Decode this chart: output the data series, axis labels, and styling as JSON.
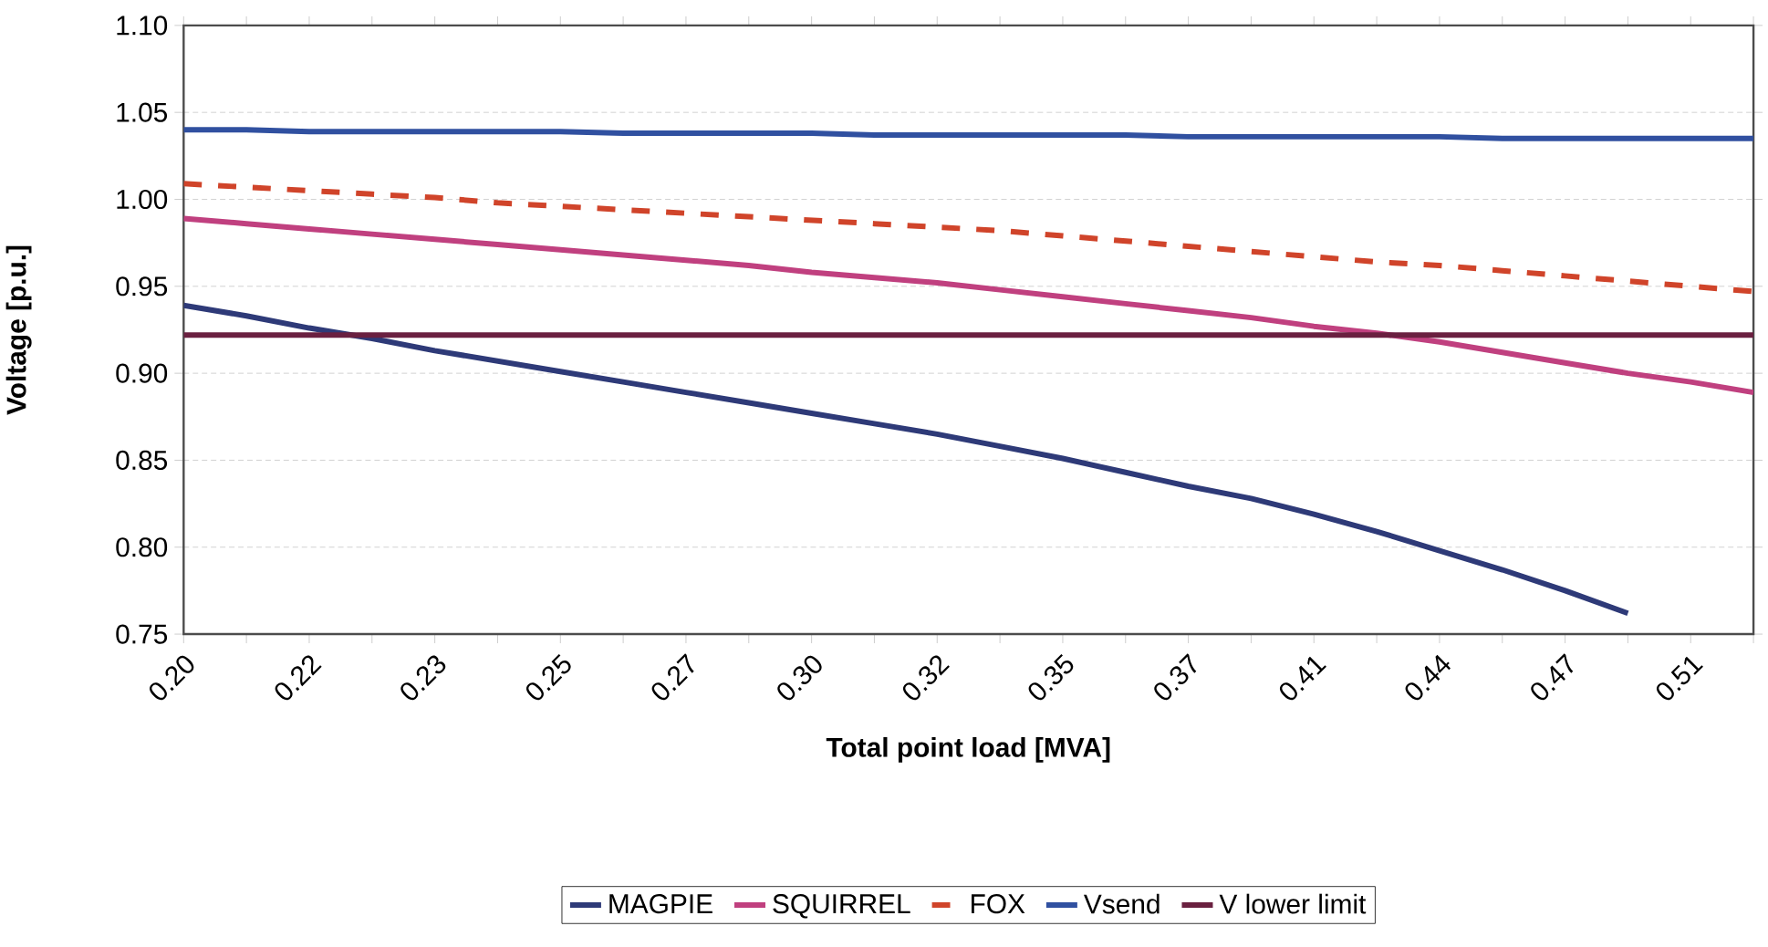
{
  "chart_data": {
    "type": "line",
    "xlabel": "Total point load [MVA]",
    "ylabel": "Voltage [p.u.]",
    "categories": [
      "0.20",
      null,
      "0.22",
      null,
      "0.23",
      null,
      "0.25",
      null,
      "0.27",
      null,
      "0.30",
      null,
      "0.32",
      null,
      "0.35",
      null,
      "0.37",
      null,
      "0.41",
      null,
      "0.44",
      null,
      "0.47",
      null,
      "0.51",
      null
    ],
    "series": [
      {
        "name": "MAGPIE",
        "color": "#2e3a78",
        "line_style": "solid",
        "values": [
          0.939,
          0.933,
          0.926,
          0.92,
          0.913,
          0.907,
          0.901,
          0.895,
          0.889,
          0.883,
          0.877,
          0.871,
          0.865,
          0.858,
          0.851,
          0.843,
          0.835,
          0.828,
          0.819,
          0.809,
          0.798,
          0.787,
          0.775,
          0.762,
          null,
          null
        ]
      },
      {
        "name": "SQUIRREL",
        "color": "#c0407f",
        "line_style": "solid",
        "values": [
          0.989,
          0.986,
          0.983,
          0.98,
          0.977,
          0.974,
          0.971,
          0.968,
          0.965,
          0.962,
          0.958,
          0.955,
          0.952,
          0.948,
          0.944,
          0.94,
          0.936,
          0.932,
          0.927,
          0.923,
          0.918,
          0.912,
          0.906,
          0.9,
          0.895,
          0.889
        ]
      },
      {
        "name": "FOX",
        "color": "#d0442a",
        "line_style": "dashed",
        "values": [
          1.009,
          1.007,
          1.005,
          1.003,
          1.001,
          0.998,
          0.996,
          0.994,
          0.992,
          0.99,
          0.988,
          0.986,
          0.984,
          0.982,
          0.979,
          0.976,
          0.973,
          0.97,
          0.967,
          0.964,
          0.962,
          0.959,
          0.956,
          0.953,
          0.95,
          0.947
        ]
      },
      {
        "name": "Vsend",
        "color": "#3050a0",
        "line_style": "solid",
        "values": [
          1.04,
          1.04,
          1.039,
          1.039,
          1.039,
          1.039,
          1.039,
          1.038,
          1.038,
          1.038,
          1.038,
          1.037,
          1.037,
          1.037,
          1.037,
          1.037,
          1.036,
          1.036,
          1.036,
          1.036,
          1.036,
          1.035,
          1.035,
          1.035,
          1.035,
          1.035
        ]
      },
      {
        "name": "V lower limit",
        "color": "#6a2040",
        "line_style": "solid",
        "values": [
          0.922,
          0.922,
          0.922,
          0.922,
          0.922,
          0.922,
          0.922,
          0.922,
          0.922,
          0.922,
          0.922,
          0.922,
          0.922,
          0.922,
          0.922,
          0.922,
          0.922,
          0.922,
          0.922,
          0.922,
          0.922,
          0.922,
          0.922,
          0.922,
          0.922,
          0.922
        ]
      }
    ],
    "ylim": [
      0.75,
      1.1
    ],
    "yticks": [
      {
        "value": 0.75,
        "label": "0.75"
      },
      {
        "value": 0.8,
        "label": "0.80"
      },
      {
        "value": 0.85,
        "label": "0.85"
      },
      {
        "value": 0.9,
        "label": "0.90"
      },
      {
        "value": 0.95,
        "label": "0.95"
      },
      {
        "value": 1.0,
        "label": "1.00"
      },
      {
        "value": 1.05,
        "label": "1.05"
      },
      {
        "value": 1.1,
        "label": "1.10"
      }
    ],
    "grid": "y",
    "legend": "bottom"
  }
}
